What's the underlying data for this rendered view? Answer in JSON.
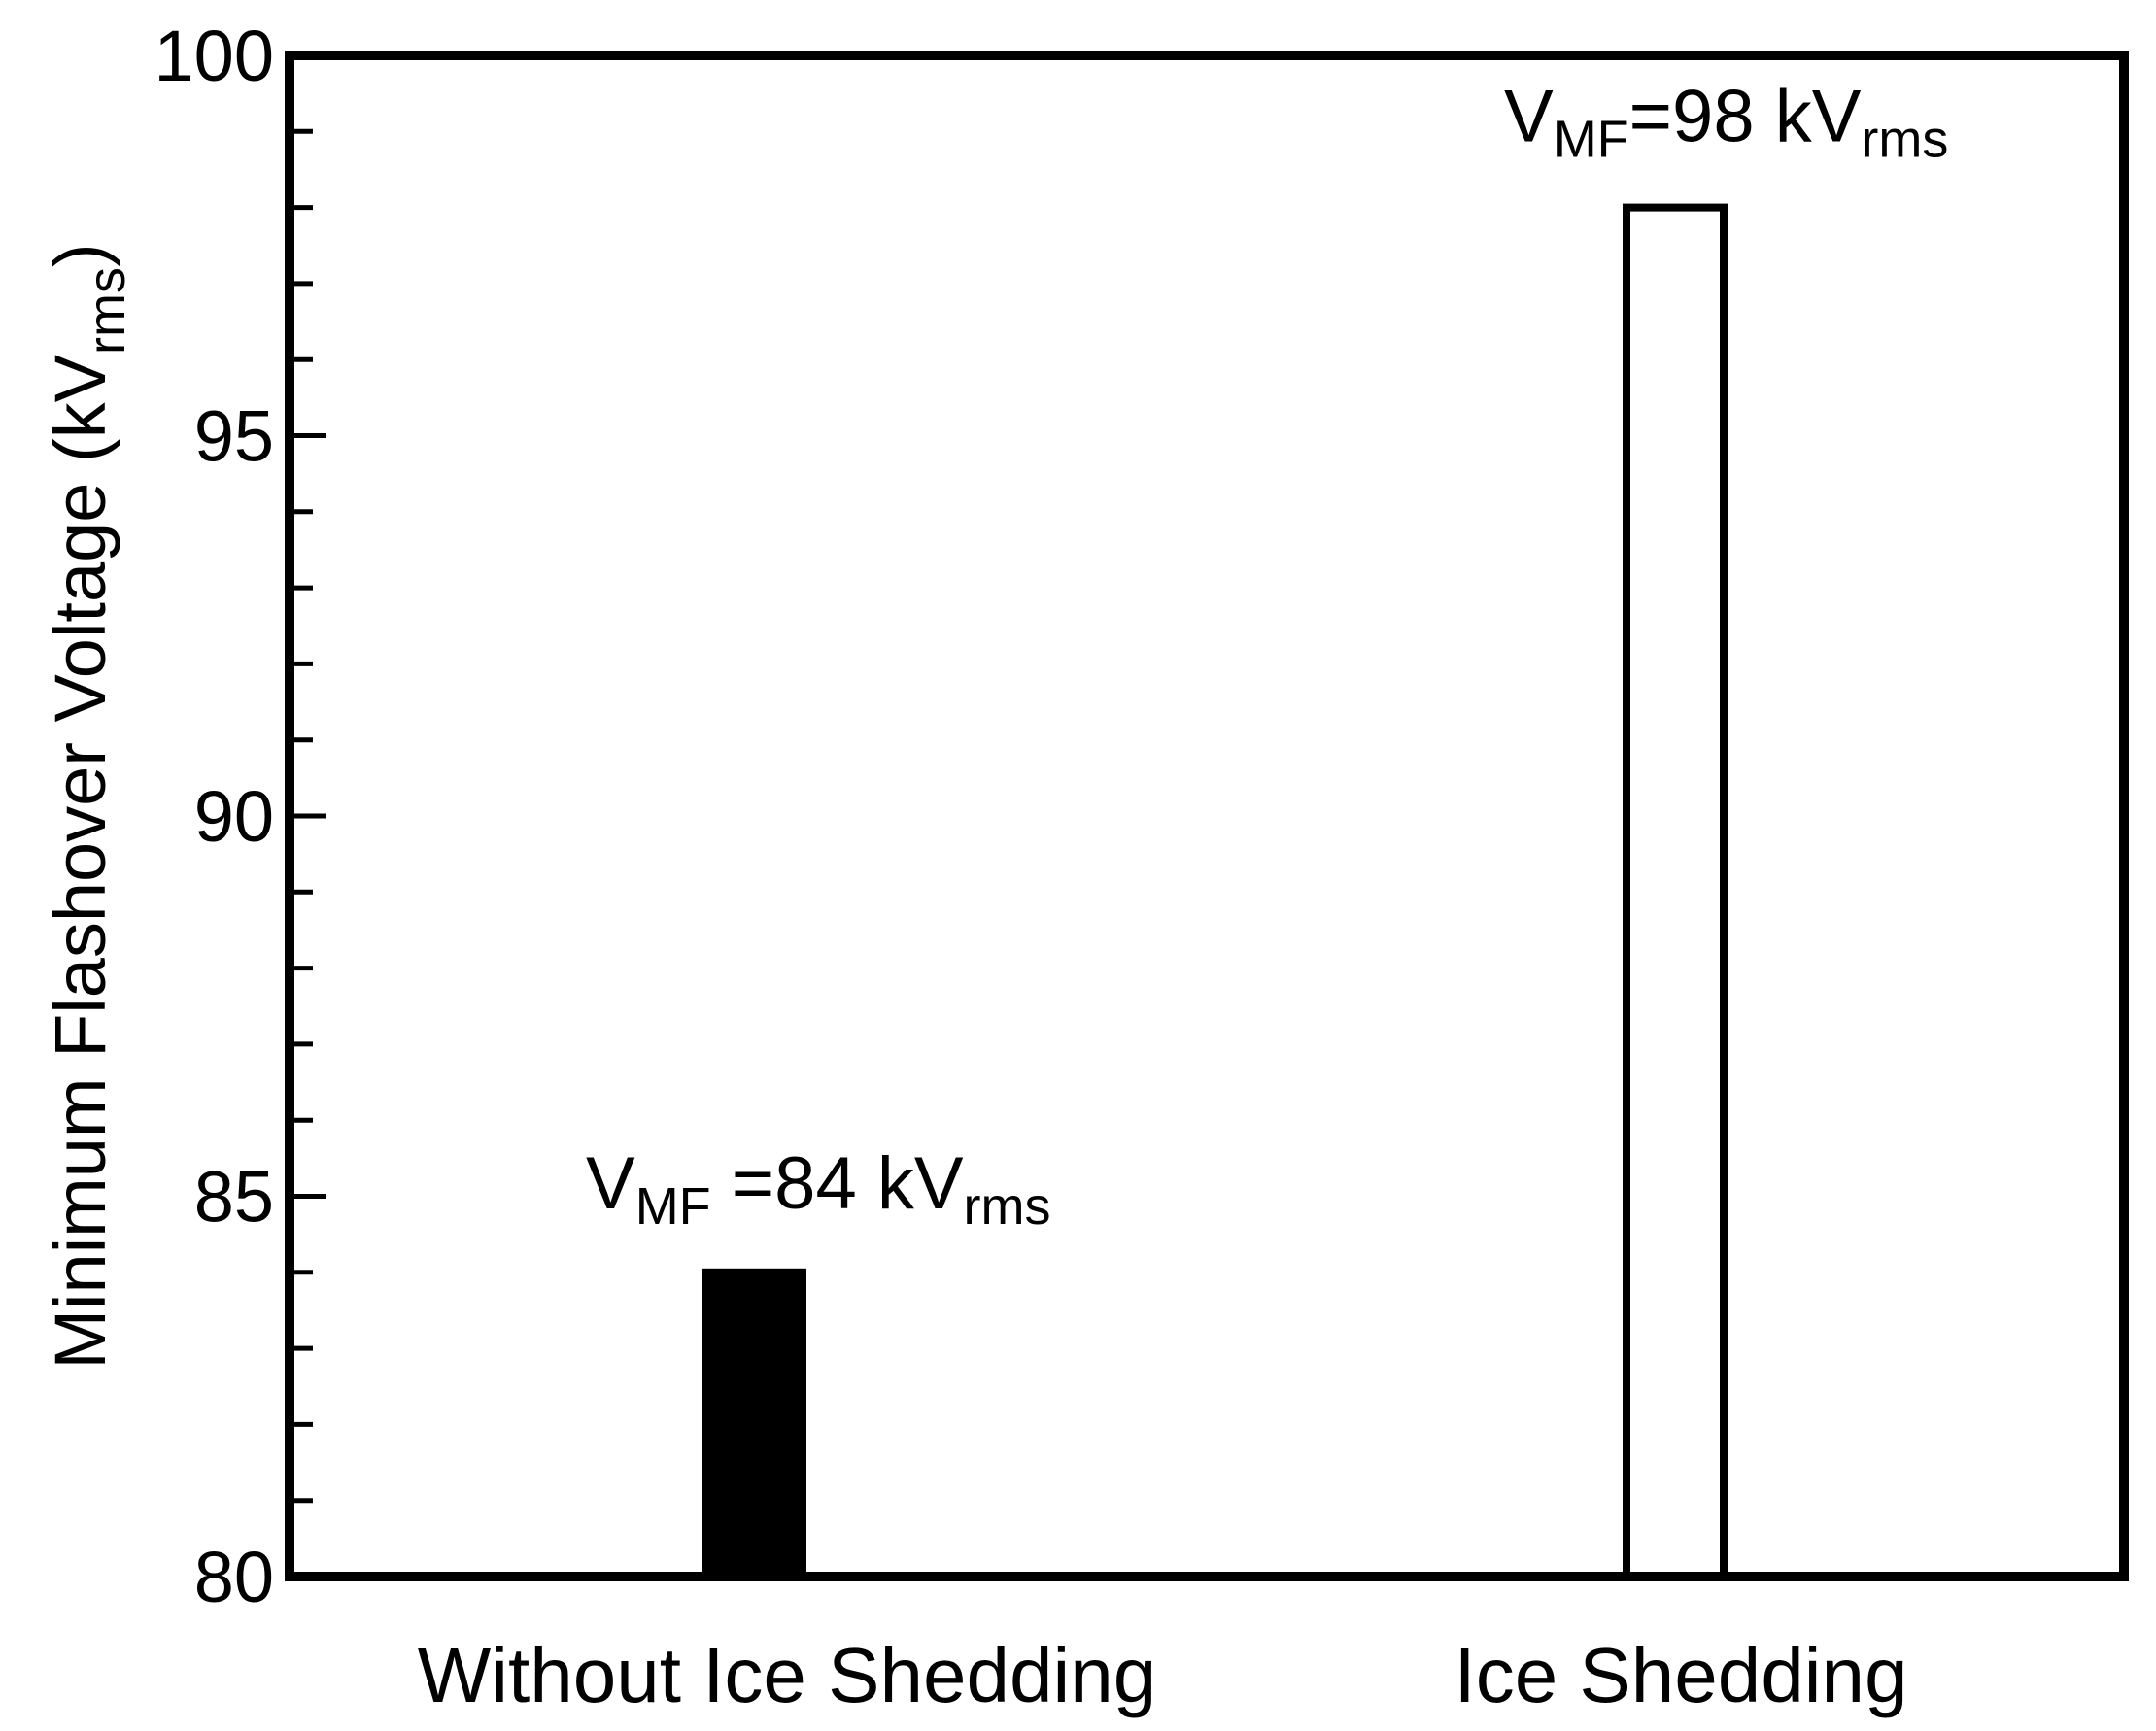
{
  "chart_data": {
    "type": "bar",
    "categories": [
      "Without Ice Shedding",
      "Ice Shedding"
    ],
    "values": [
      84,
      98
    ],
    "bar_fills": [
      "#000000",
      "#ffffff"
    ],
    "ylabel": {
      "main": "Minimum Flashover Voltage (kV",
      "sub": "rms",
      "close": ")"
    },
    "ylim": [
      80,
      100
    ],
    "yticks": [
      "80",
      "85",
      "90",
      "95",
      "100"
    ],
    "ytick_values": [
      80,
      85,
      90,
      95,
      100
    ],
    "minor_tick_step": 1,
    "grid": false,
    "annotations": [
      {
        "prefix": "V",
        "sub1": "MF",
        "mid": " =84 kV",
        "sub2": "rms"
      },
      {
        "prefix": "V",
        "sub1": "MF",
        "mid": "=98 kV",
        "sub2": "rms"
      }
    ]
  }
}
